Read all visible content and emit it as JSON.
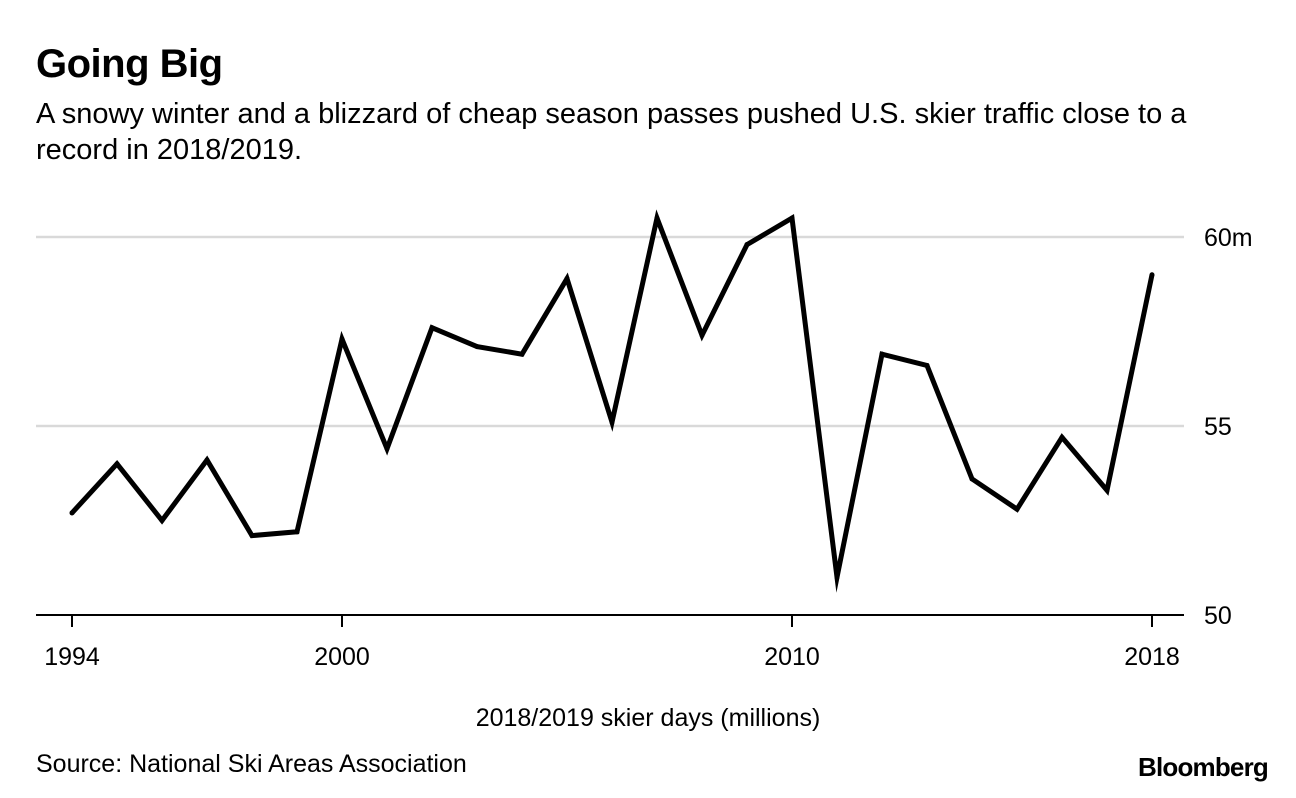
{
  "header": {
    "title": "Going Big",
    "subtitle": "A snowy winter and a blizzard of cheap season passes pushed U.S. skier traffic close to a record in 2018/2019."
  },
  "chart_data": {
    "type": "line",
    "title": "Going Big",
    "xlabel": "2018/2019 skier days (millions)",
    "ylabel": "",
    "x": [
      1994,
      1995,
      1996,
      1997,
      1998,
      1999,
      2000,
      2001,
      2002,
      2003,
      2004,
      2005,
      2006,
      2007,
      2008,
      2009,
      2010,
      2011,
      2012,
      2013,
      2014,
      2015,
      2016,
      2017,
      2018
    ],
    "values": [
      52.7,
      54.0,
      52.5,
      54.1,
      52.1,
      52.2,
      57.3,
      54.4,
      57.6,
      57.1,
      56.9,
      58.9,
      55.1,
      60.5,
      57.4,
      59.8,
      60.5,
      51.0,
      56.9,
      56.6,
      53.6,
      52.8,
      54.7,
      53.3,
      59.0
    ],
    "xlim": [
      1994,
      2018
    ],
    "ylim": [
      50,
      61
    ],
    "x_ticks": [
      1994,
      2000,
      2010,
      2018
    ],
    "x_tick_labels": [
      "1994",
      "2000",
      "2010",
      "2018"
    ],
    "y_ticks": [
      50,
      55,
      60
    ],
    "y_tick_labels": [
      "50",
      "55",
      "60m"
    ],
    "grid": true,
    "line_color": "#000000",
    "grid_color": "#d9d9d9"
  },
  "footer": {
    "source": "Source: National Ski Areas Association",
    "brand": "Bloomberg"
  }
}
